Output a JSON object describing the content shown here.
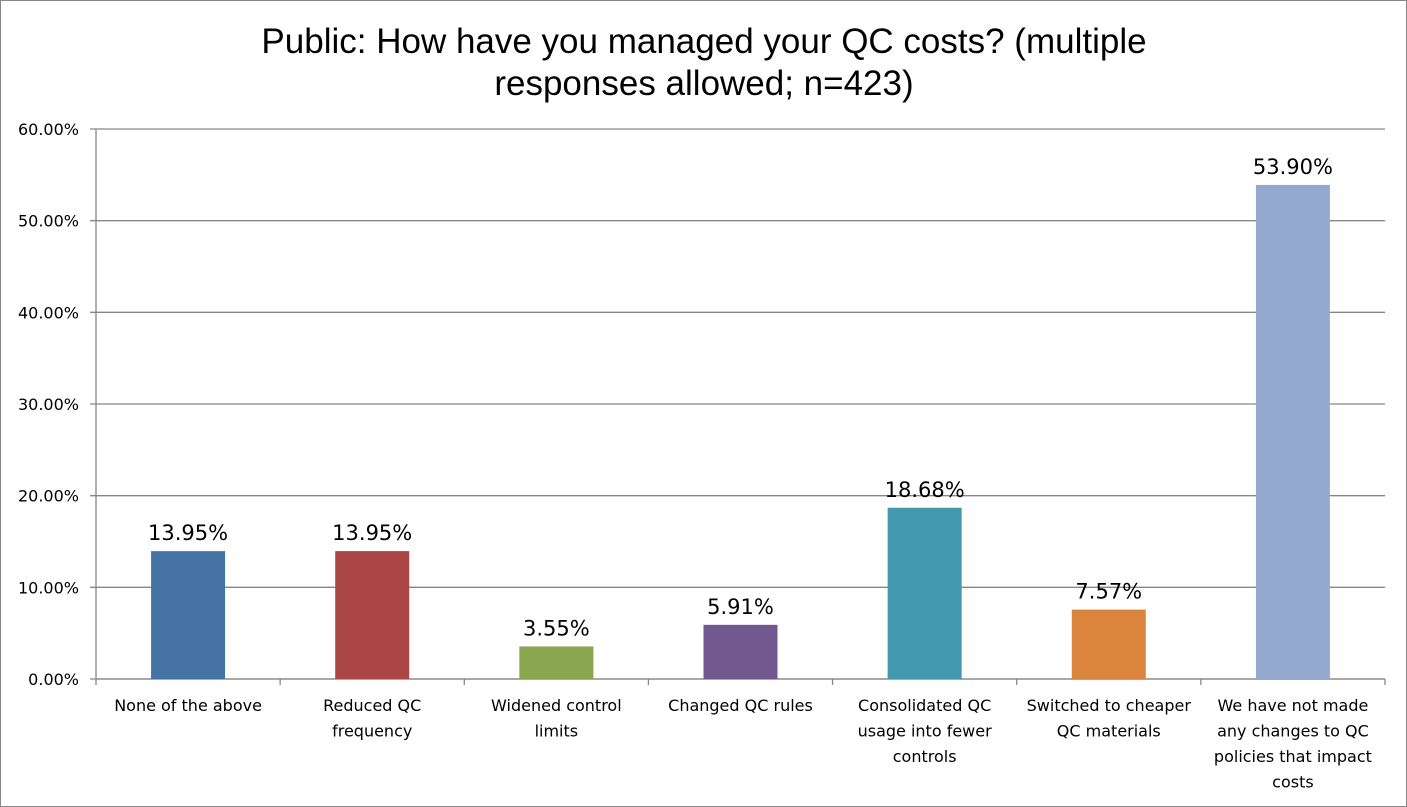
{
  "chart_data": {
    "type": "bar",
    "title_lines": [
      "Public: How have you managed your QC costs? (multiple",
      "responses allowed; n=423)"
    ],
    "categories": [
      [
        "None of the above"
      ],
      [
        "Reduced QC",
        "frequency"
      ],
      [
        "Widened control",
        "limits"
      ],
      [
        "Changed QC rules"
      ],
      [
        "Consolidated QC",
        "usage into fewer",
        "controls"
      ],
      [
        "Switched to cheaper",
        "QC materials"
      ],
      [
        "We have not made",
        "any changes to QC",
        "policies that impact",
        "costs"
      ]
    ],
    "values": [
      13.95,
      13.95,
      3.55,
      5.91,
      18.68,
      7.57,
      53.9
    ],
    "data_labels": [
      "13.95%",
      "13.95%",
      "3.55%",
      "5.91%",
      "18.68%",
      "7.57%",
      "53.90%"
    ],
    "colors": [
      "#4572A7",
      "#AA4643",
      "#89A54E",
      "#71588F",
      "#4198AF",
      "#DB843D",
      "#93A9CF"
    ],
    "ylim": [
      0,
      60
    ],
    "yticks": [
      "0.00%",
      "10.00%",
      "20.00%",
      "30.00%",
      "40.00%",
      "50.00%",
      "60.00%"
    ],
    "grid": true,
    "legend": "none",
    "xlabel": "",
    "ylabel": ""
  }
}
